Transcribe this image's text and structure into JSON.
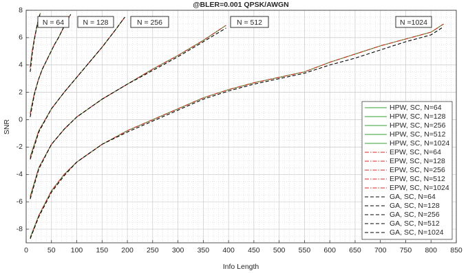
{
  "chart_data": {
    "type": "line",
    "title": "@BLER=0.001 QPSK/AWGN",
    "x_label": "Info Length",
    "y_label": "SNR",
    "xlim": [
      0,
      850
    ],
    "xticks": [
      0,
      50,
      100,
      150,
      200,
      250,
      300,
      350,
      400,
      450,
      500,
      550,
      600,
      650,
      700,
      750,
      800,
      850
    ],
    "ylim": [
      -9,
      8
    ],
    "yticks": [
      -8,
      -6,
      -4,
      -2,
      0,
      2,
      4,
      6,
      8
    ],
    "grid": true,
    "minor_grid": true,
    "legend": "lower right",
    "annotations": [
      "N = 64",
      "N = 128",
      "N = 256",
      "N = 512",
      "N =1024"
    ],
    "series": [
      {
        "name": "HPW, SC, N=64",
        "color": "#2ca02c",
        "style": "solid",
        "x": [
          8,
          12,
          16,
          20,
          24,
          28
        ],
        "values": [
          3.9,
          5.0,
          5.9,
          6.6,
          7.3,
          7.8
        ]
      },
      {
        "name": "HPW, SC, N=128",
        "color": "#2ca02c",
        "style": "solid",
        "x": [
          8,
          16,
          24,
          32,
          40,
          48,
          56,
          64,
          72,
          80,
          88
        ],
        "values": [
          0.5,
          1.9,
          2.9,
          3.7,
          4.3,
          4.9,
          5.5,
          6.0,
          6.6,
          7.2,
          7.7
        ]
      },
      {
        "name": "HPW, SC, N=256",
        "color": "#2ca02c",
        "style": "solid",
        "x": [
          8,
          25,
          50,
          75,
          100,
          125,
          150,
          175,
          195
        ],
        "values": [
          -2.7,
          -0.8,
          0.8,
          2.0,
          3.1,
          4.2,
          5.3,
          6.5,
          7.5
        ]
      },
      {
        "name": "HPW, SC, N=512",
        "color": "#2ca02c",
        "style": "solid",
        "x": [
          8,
          25,
          50,
          75,
          100,
          150,
          200,
          250,
          300,
          350,
          395
        ],
        "values": [
          -5.6,
          -3.5,
          -1.8,
          -0.7,
          0.2,
          1.5,
          2.6,
          3.7,
          4.7,
          5.8,
          6.9
        ]
      },
      {
        "name": "HPW, SC, N=1024",
        "color": "#2ca02c",
        "style": "solid",
        "x": [
          8,
          25,
          50,
          75,
          100,
          150,
          200,
          250,
          300,
          350,
          400,
          450,
          500,
          550,
          600,
          650,
          700,
          750,
          800,
          825
        ],
        "values": [
          -8.6,
          -7.0,
          -5.2,
          -4.0,
          -3.1,
          -1.8,
          -0.8,
          0.0,
          0.8,
          1.6,
          2.2,
          2.7,
          3.1,
          3.5,
          4.2,
          4.8,
          5.4,
          5.9,
          6.4,
          7.0
        ]
      },
      {
        "name": "EPW, SC, N=64",
        "color": "#e0201b",
        "style": "dashdot",
        "x": [
          8,
          12,
          16,
          20,
          24,
          28
        ],
        "values": [
          3.8,
          5.0,
          5.9,
          6.6,
          7.3,
          7.8
        ]
      },
      {
        "name": "EPW, SC, N=128",
        "color": "#e0201b",
        "style": "dashdot",
        "x": [
          8,
          16,
          24,
          32,
          40,
          48,
          56,
          64,
          72,
          80,
          88
        ],
        "values": [
          0.4,
          1.9,
          2.9,
          3.7,
          4.3,
          4.9,
          5.5,
          6.0,
          6.6,
          7.2,
          7.7
        ]
      },
      {
        "name": "EPW, SC, N=256",
        "color": "#e0201b",
        "style": "dashdot",
        "x": [
          8,
          25,
          50,
          75,
          100,
          125,
          150,
          175,
          195
        ],
        "values": [
          -2.8,
          -0.8,
          0.8,
          2.0,
          3.1,
          4.2,
          5.3,
          6.5,
          7.5
        ]
      },
      {
        "name": "EPW, SC, N=512",
        "color": "#e0201b",
        "style": "dashdot",
        "x": [
          8,
          25,
          50,
          75,
          100,
          150,
          200,
          250,
          300,
          350,
          395
        ],
        "values": [
          -5.7,
          -3.5,
          -1.8,
          -0.7,
          0.2,
          1.5,
          2.6,
          3.7,
          4.7,
          5.8,
          6.9
        ]
      },
      {
        "name": "EPW, SC, N=1024",
        "color": "#e0201b",
        "style": "dashdot",
        "x": [
          8,
          25,
          50,
          75,
          100,
          150,
          200,
          250,
          300,
          350,
          400,
          450,
          500,
          550,
          600,
          650,
          700,
          750,
          800,
          825
        ],
        "values": [
          -8.7,
          -7.0,
          -5.2,
          -4.0,
          -3.1,
          -1.8,
          -0.8,
          0.0,
          0.8,
          1.6,
          2.2,
          2.7,
          3.1,
          3.5,
          4.2,
          4.8,
          5.4,
          5.9,
          6.4,
          7.0
        ]
      },
      {
        "name": "GA, SC, N=64",
        "color": "#000000",
        "style": "dashed",
        "x": [
          8,
          12,
          16,
          20,
          24,
          28
        ],
        "values": [
          3.5,
          4.8,
          5.8,
          6.6,
          7.3,
          7.8
        ]
      },
      {
        "name": "GA, SC, N=128",
        "color": "#000000",
        "style": "dashed",
        "x": [
          8,
          16,
          24,
          32,
          40,
          48,
          56,
          64,
          72,
          80,
          88
        ],
        "values": [
          0.2,
          1.8,
          2.9,
          3.7,
          4.3,
          4.9,
          5.5,
          6.0,
          6.6,
          7.2,
          7.7
        ]
      },
      {
        "name": "GA, SC, N=256",
        "color": "#000000",
        "style": "dashed",
        "x": [
          8,
          25,
          50,
          75,
          100,
          125,
          150,
          175,
          195
        ],
        "values": [
          -2.9,
          -0.9,
          0.8,
          2.0,
          3.1,
          4.2,
          5.3,
          6.5,
          7.5
        ]
      },
      {
        "name": "GA, SC, N=512",
        "color": "#000000",
        "style": "dashed",
        "x": [
          8,
          25,
          50,
          75,
          100,
          150,
          200,
          250,
          300,
          350,
          395
        ],
        "values": [
          -5.8,
          -3.6,
          -1.8,
          -0.7,
          0.2,
          1.5,
          2.6,
          3.6,
          4.6,
          5.7,
          6.7
        ]
      },
      {
        "name": "GA, SC, N=1024",
        "color": "#000000",
        "style": "dashed",
        "x": [
          8,
          25,
          50,
          75,
          100,
          150,
          200,
          250,
          300,
          350,
          400,
          450,
          500,
          550,
          600,
          650,
          700,
          750,
          800,
          825
        ],
        "values": [
          -8.7,
          -7.1,
          -5.3,
          -4.1,
          -3.1,
          -1.8,
          -0.9,
          -0.1,
          0.7,
          1.5,
          2.1,
          2.6,
          3.0,
          3.4,
          4.0,
          4.5,
          5.1,
          5.7,
          6.2,
          6.8
        ]
      }
    ]
  }
}
